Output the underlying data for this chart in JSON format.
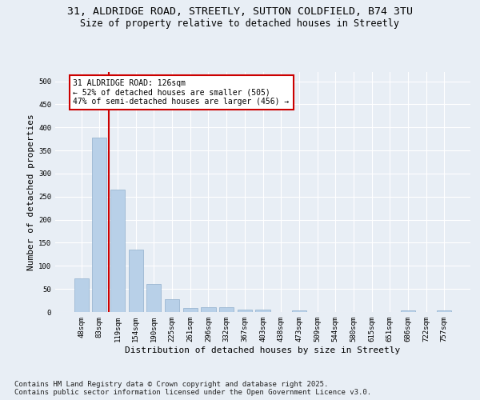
{
  "title_line1": "31, ALDRIDGE ROAD, STREETLY, SUTTON COLDFIELD, B74 3TU",
  "title_line2": "Size of property relative to detached houses in Streetly",
  "xlabel": "Distribution of detached houses by size in Streetly",
  "ylabel": "Number of detached properties",
  "categories": [
    "48sqm",
    "83sqm",
    "119sqm",
    "154sqm",
    "190sqm",
    "225sqm",
    "261sqm",
    "296sqm",
    "332sqm",
    "367sqm",
    "403sqm",
    "438sqm",
    "473sqm",
    "509sqm",
    "544sqm",
    "580sqm",
    "615sqm",
    "651sqm",
    "686sqm",
    "722sqm",
    "757sqm"
  ],
  "values": [
    72,
    378,
    265,
    136,
    60,
    28,
    9,
    10,
    10,
    5,
    5,
    0,
    4,
    0,
    0,
    0,
    0,
    0,
    4,
    0,
    4
  ],
  "bar_color": "#b8d0e8",
  "bar_edge_color": "#90b0cc",
  "vline_color": "#cc0000",
  "vline_x": 1.5,
  "annotation_line1": "31 ALDRIDGE ROAD: 126sqm",
  "annotation_line2": "← 52% of detached houses are smaller (505)",
  "annotation_line3": "47% of semi-detached houses are larger (456) →",
  "annotation_box_edgecolor": "#cc0000",
  "annotation_facecolor": "#ffffff",
  "footer_line1": "Contains HM Land Registry data © Crown copyright and database right 2025.",
  "footer_line2": "Contains public sector information licensed under the Open Government Licence v3.0.",
  "ylim": [
    0,
    520
  ],
  "yticks": [
    0,
    50,
    100,
    150,
    200,
    250,
    300,
    350,
    400,
    450,
    500
  ],
  "background_color": "#e8eef5",
  "grid_color": "#ffffff",
  "title_fontsize": 9.5,
  "subtitle_fontsize": 8.5,
  "axis_label_fontsize": 8,
  "tick_fontsize": 6.5,
  "annotation_fontsize": 7,
  "footer_fontsize": 6.5
}
